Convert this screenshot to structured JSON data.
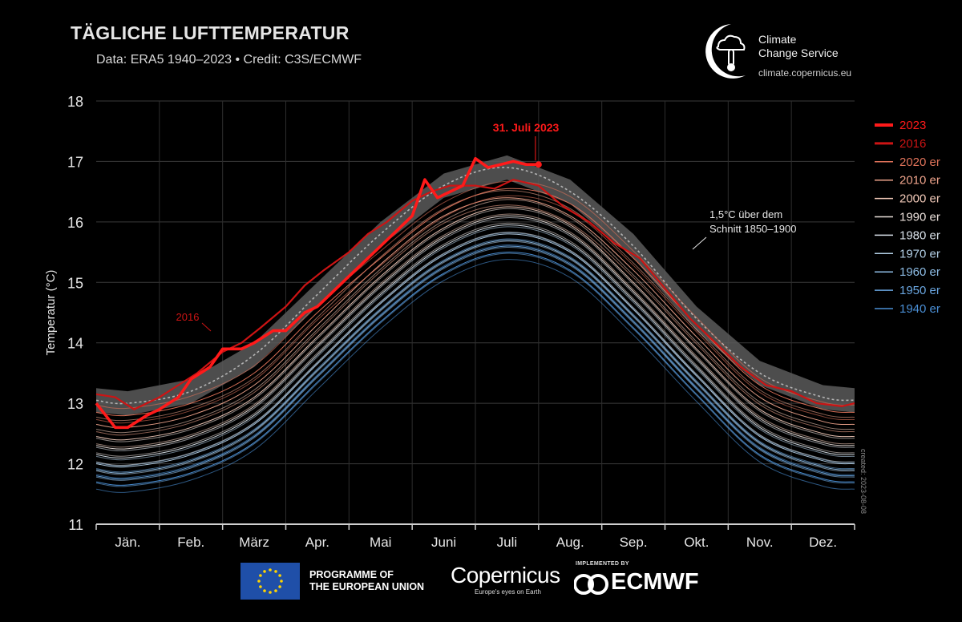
{
  "title": "TÄGLICHE LUFTTEMPERATUR",
  "subtitle": "Data: ERA5 1940–2023 • Credit: C3S/ECMWF",
  "brand": {
    "name_line1": "Climate",
    "name_line2": "Change Service",
    "url": "climate.copernicus.eu"
  },
  "created_note": "created: 2023-08-08",
  "footer": {
    "eu_line1": "PROGRAMME OF",
    "eu_line2": "THE EUROPEAN UNION",
    "copernicus_word": "Copernicus",
    "copernicus_tag": "Europe's eyes on Earth",
    "implemented_by": "IMPLEMENTED BY",
    "ecmwf_word": "ECMWF"
  },
  "colors": {
    "y2023": "#ff1a1a",
    "y2016": "#cc1414",
    "decade_2020s": "#e0735a",
    "decade_2010s": "#eea38b",
    "decade_2000s": "#f1c9b8",
    "decade_1990s": "#eadfda",
    "decade_1980s": "#d8e0e8",
    "decade_1970s": "#b3cfe6",
    "decade_1960s": "#8ebde6",
    "decade_1950s": "#6aa6e0",
    "decade_1940s": "#4a8fd6",
    "band": "#5a5a5a",
    "band_line": "#b4b4b4"
  },
  "chart_data": {
    "type": "line",
    "title": "TÄGLICHE LUFTTEMPERATUR",
    "xlabel": "",
    "ylabel": "Temperatur (°C)",
    "ylim": [
      11,
      18
    ],
    "yticks": [
      "11",
      "12",
      "13",
      "14",
      "15",
      "16",
      "17",
      "18"
    ],
    "months": [
      "Jän.",
      "Feb.",
      "März",
      "Apr.",
      "Mai",
      "Juni",
      "Juli",
      "Aug.",
      "Sep.",
      "Okt.",
      "Nov.",
      "Dez."
    ],
    "legend_position": "right",
    "legend": [
      "2023",
      "2016",
      "2020 er",
      "2010 er",
      "2000 er",
      "1990 er",
      "1980 er",
      "1970 er",
      "1960 er",
      "1950 er",
      "1940 er"
    ],
    "annotations": {
      "peak_label": "31. Juli 2023",
      "label_2016": "2016",
      "threshold_line1": "1,5°C über dem",
      "threshold_line2": "Schnitt 1850–1900"
    },
    "threshold_15C": {
      "name": "1,5°C über dem Schnitt 1850–1900",
      "x_month": [
        0.5,
        1.5,
        2.5,
        3.5,
        4.5,
        5.5,
        6.5,
        7.5,
        8.5,
        9.5,
        10.5,
        11.5
      ],
      "values": [
        13.0,
        13.2,
        13.8,
        14.8,
        15.8,
        16.6,
        16.9,
        16.5,
        15.6,
        14.4,
        13.5,
        13.1
      ],
      "band_halfwidth": 0.2
    },
    "series": [
      {
        "name": "2023",
        "x_month": [
          0.0,
          0.3,
          0.5,
          0.8,
          1.0,
          1.3,
          1.5,
          1.8,
          2.0,
          2.3,
          2.5,
          2.8,
          3.0,
          3.3,
          3.5,
          3.8,
          4.0,
          4.3,
          4.5,
          4.8,
          5.0,
          5.2,
          5.4,
          5.6,
          5.8,
          6.0,
          6.2,
          6.4,
          6.6,
          6.8,
          7.0
        ],
        "values": [
          13.0,
          12.6,
          12.6,
          12.8,
          12.9,
          13.1,
          13.4,
          13.6,
          13.9,
          13.9,
          14.0,
          14.2,
          14.2,
          14.5,
          14.6,
          14.9,
          15.1,
          15.4,
          15.6,
          15.9,
          16.1,
          16.7,
          16.4,
          16.5,
          16.6,
          17.05,
          16.9,
          16.95,
          17.0,
          16.95,
          16.95
        ]
      },
      {
        "name": "2016",
        "x_month": [
          0.0,
          0.3,
          0.6,
          1.0,
          1.3,
          1.6,
          2.0,
          2.3,
          2.6,
          3.0,
          3.3,
          3.6,
          4.0,
          4.3,
          4.6,
          5.0,
          5.3,
          5.6,
          6.0,
          6.3,
          6.6,
          7.0,
          7.4,
          7.8,
          8.2,
          8.6,
          9.0,
          9.4,
          9.8,
          10.2,
          10.6,
          11.0,
          11.4,
          11.8,
          12.0
        ],
        "values": [
          13.15,
          13.1,
          12.9,
          13.1,
          13.3,
          13.5,
          13.85,
          14.0,
          14.25,
          14.6,
          14.95,
          15.2,
          15.5,
          15.8,
          16.0,
          16.35,
          16.5,
          16.6,
          16.6,
          16.55,
          16.7,
          16.6,
          16.25,
          16.0,
          15.65,
          15.4,
          14.9,
          14.4,
          14.0,
          13.6,
          13.3,
          13.2,
          13.0,
          12.95,
          13.0
        ]
      },
      {
        "name": "2020 er",
        "x_month": [
          0.5,
          1.5,
          2.5,
          3.5,
          4.5,
          5.5,
          6.5,
          7.5,
          8.5,
          9.5,
          10.5,
          11.5
        ],
        "values": [
          12.8,
          13.0,
          13.5,
          14.5,
          15.4,
          16.2,
          16.55,
          16.3,
          15.4,
          14.3,
          13.3,
          12.9
        ]
      },
      {
        "name": "2010 er",
        "x_month": [
          0.5,
          1.5,
          2.5,
          3.5,
          4.5,
          5.5,
          6.5,
          7.5,
          8.5,
          9.5,
          10.5,
          11.5
        ],
        "values": [
          12.6,
          12.8,
          13.3,
          14.3,
          15.3,
          16.1,
          16.4,
          16.1,
          15.2,
          14.1,
          13.1,
          12.7
        ]
      },
      {
        "name": "2000 er",
        "x_month": [
          0.5,
          1.5,
          2.5,
          3.5,
          4.5,
          5.5,
          6.5,
          7.5,
          8.5,
          9.5,
          10.5,
          11.5
        ],
        "values": [
          12.4,
          12.6,
          13.1,
          14.1,
          15.1,
          15.9,
          16.25,
          15.95,
          15.0,
          13.9,
          12.9,
          12.5
        ]
      },
      {
        "name": "1990 er",
        "x_month": [
          0.5,
          1.5,
          2.5,
          3.5,
          4.5,
          5.5,
          6.5,
          7.5,
          8.5,
          9.5,
          10.5,
          11.5
        ],
        "values": [
          12.25,
          12.45,
          12.95,
          13.95,
          14.95,
          15.75,
          16.1,
          15.8,
          14.85,
          13.75,
          12.75,
          12.35
        ]
      },
      {
        "name": "1980 er",
        "x_month": [
          0.5,
          1.5,
          2.5,
          3.5,
          4.5,
          5.5,
          6.5,
          7.5,
          8.5,
          9.5,
          10.5,
          11.5
        ],
        "values": [
          12.1,
          12.3,
          12.8,
          13.8,
          14.8,
          15.6,
          15.95,
          15.65,
          14.7,
          13.6,
          12.6,
          12.2
        ]
      },
      {
        "name": "1970 er",
        "x_month": [
          0.5,
          1.5,
          2.5,
          3.5,
          4.5,
          5.5,
          6.5,
          7.5,
          8.5,
          9.5,
          10.5,
          11.5
        ],
        "values": [
          11.95,
          12.15,
          12.65,
          13.65,
          14.65,
          15.45,
          15.8,
          15.5,
          14.55,
          13.45,
          12.45,
          12.05
        ]
      },
      {
        "name": "1960 er",
        "x_month": [
          0.5,
          1.5,
          2.5,
          3.5,
          4.5,
          5.5,
          6.5,
          7.5,
          8.5,
          9.5,
          10.5,
          11.5
        ],
        "values": [
          11.85,
          12.05,
          12.55,
          13.55,
          14.55,
          15.35,
          15.7,
          15.4,
          14.45,
          13.35,
          12.35,
          11.95
        ]
      },
      {
        "name": "1950 er",
        "x_month": [
          0.5,
          1.5,
          2.5,
          3.5,
          4.5,
          5.5,
          6.5,
          7.5,
          8.5,
          9.5,
          10.5,
          11.5
        ],
        "values": [
          11.75,
          11.95,
          12.45,
          13.45,
          14.45,
          15.25,
          15.6,
          15.3,
          14.35,
          13.25,
          12.25,
          11.85
        ]
      },
      {
        "name": "1940 er",
        "x_month": [
          0.5,
          1.5,
          2.5,
          3.5,
          4.5,
          5.5,
          6.5,
          7.5,
          8.5,
          9.5,
          10.5,
          11.5
        ],
        "values": [
          11.65,
          11.85,
          12.35,
          13.35,
          14.35,
          15.15,
          15.5,
          15.2,
          14.25,
          13.15,
          12.15,
          11.75
        ]
      }
    ]
  }
}
